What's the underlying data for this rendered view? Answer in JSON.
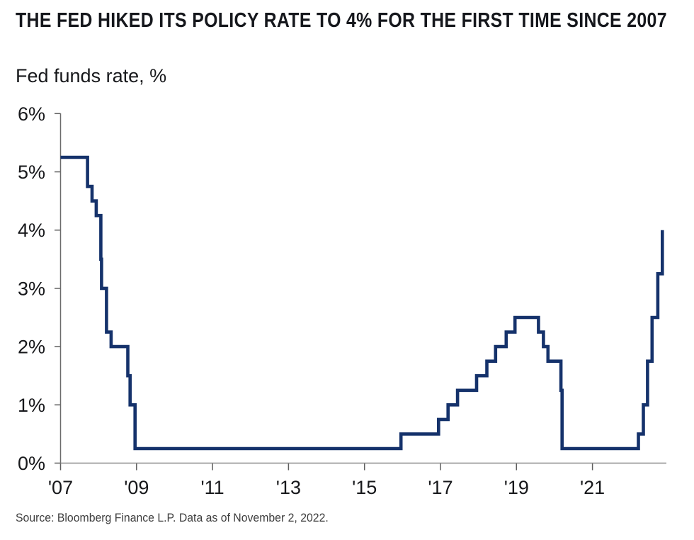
{
  "chart_data": {
    "type": "line",
    "step": true,
    "title": "THE FED HIKED ITS POLICY RATE TO 4% FOR THE FIRST TIME SINCE 2007",
    "subtitle": "Fed funds rate, %",
    "source": "Source: Bloomberg Finance L.P. Data as of November 2, 2022.",
    "xlabel": "",
    "ylabel": "Fed funds rate, %",
    "ylim": [
      0,
      6
    ],
    "xlim": [
      2007,
      2022.95
    ],
    "grid": false,
    "legend": "none",
    "yticks": {
      "values": [
        0,
        1,
        2,
        3,
        4,
        5,
        6
      ],
      "labels": [
        "0%",
        "1%",
        "2%",
        "3%",
        "4%",
        "5%",
        "6%"
      ]
    },
    "xticks": {
      "values": [
        2007,
        2009,
        2011,
        2013,
        2015,
        2017,
        2019,
        2021
      ],
      "labels": [
        "'07",
        "'09",
        "'11",
        "'13",
        "'15",
        "'17",
        "'19",
        "'21"
      ]
    },
    "series": [
      {
        "name": "Fed funds rate, %",
        "color": "#15326B",
        "points": [
          [
            2007.0,
            5.25
          ],
          [
            2007.71,
            4.75
          ],
          [
            2007.83,
            4.5
          ],
          [
            2007.94,
            4.25
          ],
          [
            2008.06,
            3.5
          ],
          [
            2008.08,
            3.0
          ],
          [
            2008.21,
            2.25
          ],
          [
            2008.33,
            2.0
          ],
          [
            2008.77,
            1.5
          ],
          [
            2008.83,
            1.0
          ],
          [
            2008.96,
            0.25
          ],
          [
            2015.96,
            0.5
          ],
          [
            2016.95,
            0.75
          ],
          [
            2017.2,
            1.0
          ],
          [
            2017.45,
            1.25
          ],
          [
            2017.95,
            1.5
          ],
          [
            2018.22,
            1.75
          ],
          [
            2018.45,
            2.0
          ],
          [
            2018.73,
            2.25
          ],
          [
            2018.96,
            2.5
          ],
          [
            2019.58,
            2.25
          ],
          [
            2019.71,
            2.0
          ],
          [
            2019.83,
            1.75
          ],
          [
            2020.17,
            1.25
          ],
          [
            2020.2,
            0.25
          ],
          [
            2022.21,
            0.5
          ],
          [
            2022.34,
            1.0
          ],
          [
            2022.45,
            1.75
          ],
          [
            2022.57,
            2.5
          ],
          [
            2022.72,
            3.25
          ],
          [
            2022.84,
            4.0
          ]
        ]
      }
    ],
    "colors": {
      "line": "#15326B",
      "x_axis": "#8A8A8A",
      "y_axis": "#6B6B6B",
      "tick": "#5E5E5E",
      "text": "#17181B",
      "title_text": "#15171C",
      "source_text": "#3D3D3D",
      "background": "#FFFFFF"
    }
  }
}
